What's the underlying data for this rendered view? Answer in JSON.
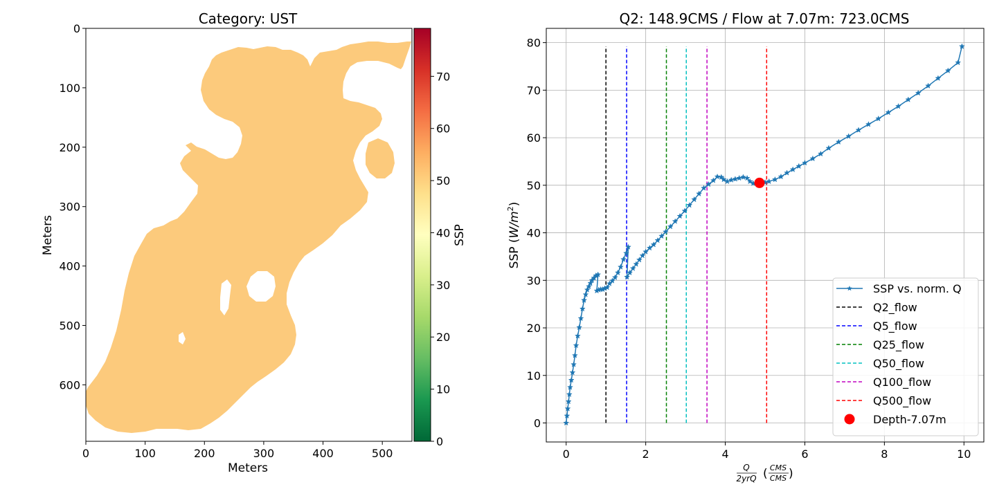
{
  "left_chart": {
    "title": "Category: UST",
    "xlabel": "Meters",
    "ylabel": "Meters",
    "colorbar_label": "SSP"
  },
  "right_chart": {
    "title": "Q2: 148.9CMS / Flow at 7.07m: 723.0CMS",
    "ylabel_main": "SSP (",
    "ylabel_unit": "W/m",
    "ylabel_sup": "2",
    "ylabel_close": ")",
    "xlabel_num": "Q",
    "xlabel_den": "2yrQ",
    "xlabel_unit_num": "CMS",
    "xlabel_unit_den": "CMS"
  },
  "colors": {
    "fill": "#fcca7c",
    "line": "#1f77b4",
    "marker": "#ff0000"
  },
  "chart_data": [
    {
      "type": "heatmap",
      "title": "Category: UST",
      "xlabel": "Meters",
      "ylabel": "Meters",
      "xlim": [
        0,
        550
      ],
      "ylim": [
        695,
        0
      ],
      "x_ticks": [
        "0",
        "100",
        "200",
        "300",
        "400",
        "500"
      ],
      "y_ticks": [
        "0",
        "100",
        "200",
        "300",
        "400",
        "500",
        "600"
      ],
      "colorbar": {
        "label": "SSP",
        "range": [
          0,
          79.2
        ],
        "ticks": [
          "0",
          "10",
          "20",
          "30",
          "40",
          "50",
          "60",
          "70"
        ],
        "colormap": "RdYlGn_r"
      },
      "fill_value_approx": 50.5,
      "fill_color": "#fcca7c"
    },
    {
      "type": "line",
      "title": "Q2: 148.9CMS / Flow at 7.07m: 723.0CMS",
      "xlabel": "Q / 2yrQ (CMS / CMS)",
      "ylabel": "SSP (W/m^2)",
      "xlim": [
        -0.5,
        10.5
      ],
      "ylim": [
        -4,
        83
      ],
      "x_ticks": [
        "0",
        "2",
        "4",
        "6",
        "8",
        "10"
      ],
      "y_ticks": [
        "0",
        "10",
        "20",
        "30",
        "40",
        "50",
        "60",
        "70",
        "80"
      ],
      "grid": true,
      "legend_position": "lower-right",
      "series": [
        {
          "name": "SSP vs. norm. Q",
          "marker": "star",
          "x": [
            0.0,
            0.02,
            0.04,
            0.06,
            0.08,
            0.1,
            0.13,
            0.16,
            0.19,
            0.22,
            0.25,
            0.29,
            0.33,
            0.37,
            0.41,
            0.45,
            0.49,
            0.53,
            0.57,
            0.61,
            0.65,
            0.7,
            0.75,
            0.8,
            0.77,
            0.82,
            0.87,
            0.92,
            0.97,
            1.03,
            1.09,
            1.16,
            1.23,
            1.3,
            1.37,
            1.44,
            1.51,
            1.56,
            1.53,
            1.6,
            1.68,
            1.76,
            1.84,
            1.92,
            2.0,
            2.1,
            2.2,
            2.3,
            2.4,
            2.5,
            2.62,
            2.74,
            2.86,
            2.98,
            3.1,
            3.22,
            3.34,
            3.46,
            3.58,
            3.7,
            3.8,
            3.9,
            3.96,
            4.05,
            4.15,
            4.25,
            4.35,
            4.45,
            4.55,
            4.62,
            4.7,
            4.8,
            4.9,
            5.0,
            5.1,
            5.25,
            5.4,
            5.55,
            5.7,
            5.85,
            6.0,
            6.2,
            6.4,
            6.6,
            6.85,
            7.1,
            7.35,
            7.6,
            7.85,
            8.1,
            8.35,
            8.6,
            8.85,
            9.1,
            9.35,
            9.6,
            9.85,
            9.95
          ],
          "y": [
            0.0,
            1.5,
            3.0,
            4.5,
            6.0,
            7.5,
            9.0,
            10.6,
            12.3,
            14.2,
            16.3,
            18.3,
            20.1,
            22.0,
            24.0,
            25.8,
            27.0,
            28.0,
            28.7,
            29.4,
            30.0,
            30.5,
            31.0,
            31.2,
            27.8,
            28.0,
            28.1,
            28.1,
            28.3,
            28.5,
            29.3,
            29.9,
            30.6,
            31.6,
            32.8,
            34.4,
            35.7,
            37.0,
            30.7,
            31.6,
            32.5,
            33.4,
            34.3,
            35.2,
            36.0,
            36.8,
            37.5,
            38.4,
            39.3,
            40.2,
            41.3,
            42.4,
            43.5,
            44.6,
            45.8,
            47.0,
            48.2,
            49.4,
            50.2,
            51.0,
            51.8,
            51.7,
            51.2,
            50.8,
            51.1,
            51.3,
            51.5,
            51.7,
            51.5,
            50.8,
            50.4,
            50.4,
            50.5,
            50.6,
            50.8,
            51.2,
            51.8,
            52.6,
            53.3,
            54.0,
            54.7,
            55.6,
            56.6,
            57.8,
            59.1,
            60.3,
            61.6,
            62.8,
            64.0,
            65.3,
            66.6,
            68.0,
            69.4,
            70.9,
            72.5,
            74.1,
            75.8,
            79.2
          ]
        },
        {
          "name": "Q2_flow",
          "x_value": 1.0,
          "y_range": [
            0,
            79.2
          ],
          "color": "#000000"
        },
        {
          "name": "Q5_flow",
          "x_value": 1.52,
          "y_range": [
            0,
            79.2
          ],
          "color": "#0000ff"
        },
        {
          "name": "Q25_flow",
          "x_value": 2.52,
          "y_range": [
            0,
            79.2
          ],
          "color": "#008000"
        },
        {
          "name": "Q50_flow",
          "x_value": 3.02,
          "y_range": [
            0,
            79.2
          ],
          "color": "#00c0c0"
        },
        {
          "name": "Q100_flow",
          "x_value": 3.54,
          "y_range": [
            0,
            79.2
          ],
          "color": "#c000c0"
        },
        {
          "name": "Q500_flow",
          "x_value": 5.04,
          "y_range": [
            0,
            79.2
          ],
          "color": "#ff0000"
        },
        {
          "name": "Depth-7.07m",
          "marker": "circle",
          "x": [
            4.86
          ],
          "y": [
            50.5
          ],
          "color": "#ff0000"
        }
      ]
    }
  ]
}
